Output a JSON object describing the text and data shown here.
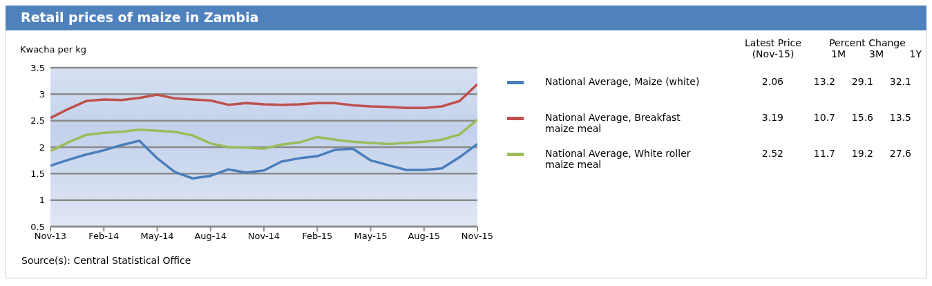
{
  "chart_data": {
    "type": "line",
    "title": "Retail prices of maize in Zambia",
    "ylabel": "Kwacha per kg",
    "categories": [
      "Nov-13",
      null,
      null,
      "Feb-14",
      null,
      null,
      "May-14",
      null,
      null,
      "Aug-14",
      null,
      null,
      "Nov-14",
      null,
      null,
      "Feb-15",
      null,
      null,
      "May-15",
      null,
      null,
      "Aug-15",
      null,
      null,
      "Nov-15"
    ],
    "series": [
      {
        "name": "National Average, Maize (white)",
        "color": "#4a7ebb",
        "values": [
          1.65,
          1.76,
          1.86,
          1.94,
          2.04,
          2.12,
          1.79,
          1.53,
          1.41,
          1.46,
          1.58,
          1.52,
          1.56,
          1.73,
          1.79,
          1.83,
          1.95,
          1.97,
          1.75,
          1.66,
          1.57,
          1.57,
          1.6,
          1.81,
          2.06
        ]
      },
      {
        "name": "National Average, Breakfast maize meal",
        "color": "#c0504d",
        "values": [
          2.55,
          2.72,
          2.87,
          2.9,
          2.89,
          2.93,
          2.99,
          2.92,
          2.9,
          2.88,
          2.8,
          2.83,
          2.81,
          2.8,
          2.81,
          2.83,
          2.83,
          2.79,
          2.77,
          2.76,
          2.74,
          2.74,
          2.77,
          2.87,
          3.19
        ]
      },
      {
        "name": "National Average, White roller maize meal",
        "color": "#9bbb59",
        "values": [
          1.93,
          2.09,
          2.23,
          2.27,
          2.29,
          2.33,
          2.31,
          2.29,
          2.22,
          2.07,
          2.0,
          1.99,
          1.97,
          2.05,
          2.09,
          2.19,
          2.14,
          2.1,
          2.08,
          2.06,
          2.08,
          2.1,
          2.14,
          2.24,
          2.52
        ]
      }
    ],
    "ylim": [
      0.5,
      3.5
    ],
    "yticks": [
      0.5,
      1,
      1.5,
      2,
      2.5,
      3,
      3.5
    ],
    "grid": "y",
    "legend": "right",
    "marker": "none",
    "line_style": "solid",
    "annotations": [
      "Latest Price (Nov-15)",
      "Percent Change",
      "1M",
      "3M",
      "1Y",
      "2.06",
      "13.2",
      "29.1",
      "32.1",
      "3.19",
      "10.7",
      "15.6",
      "13.5",
      "2.52",
      "11.7",
      "19.2",
      "27.6",
      "Source(s): Central Statistical Office"
    ]
  }
}
